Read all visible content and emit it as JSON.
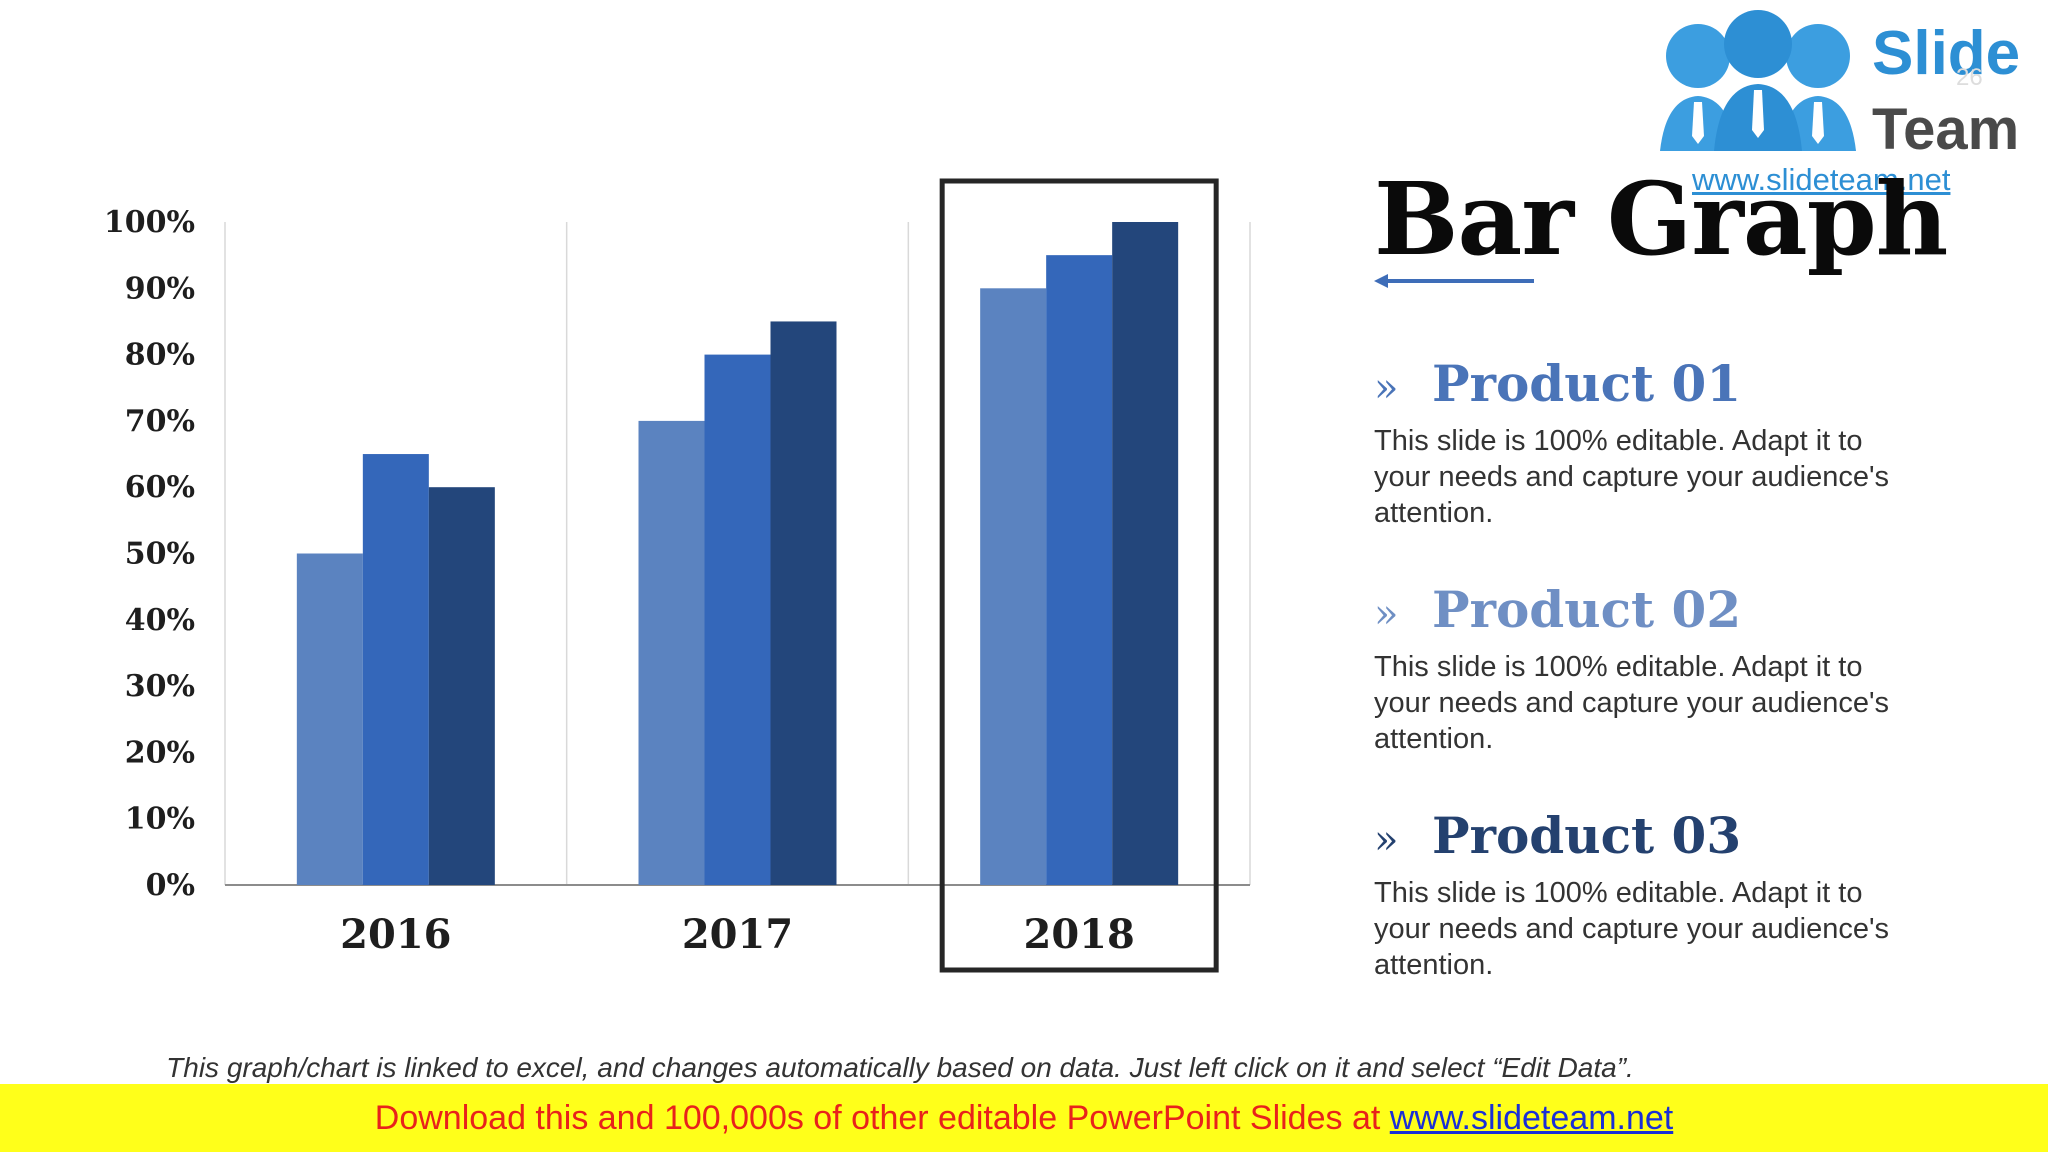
{
  "logo": {
    "word_1": "Slide",
    "word_2": "Team",
    "url": "www.slideteam.net"
  },
  "page_number": "26",
  "title": "Bar Graph",
  "products": [
    {
      "chevron": "»",
      "name": "Product 01",
      "color": "#4a74b8",
      "description": "This slide is 100% editable. Adapt it to your needs and capture your audience's attention."
    },
    {
      "chevron": "»",
      "name": "Product 02",
      "color": "#6f8fc4",
      "description": "This slide is 100% editable. Adapt it to your needs and capture your audience's attention."
    },
    {
      "chevron": "»",
      "name": "Product 03",
      "color": "#24416f",
      "description": "This slide is 100% editable. Adapt it to your needs and capture your audience's attention."
    }
  ],
  "footnote": "This graph/chart is linked to excel, and changes automatically based on data. Just left click on it and select “Edit Data”.",
  "banner": {
    "text": "Download this and 100,000s of other editable PowerPoint Slides at ",
    "link": "www.slideteam.net"
  },
  "colors": {
    "series_1": "#5b83c0",
    "series_2": "#3467ba",
    "series_3": "#23467b",
    "arrow": "#3e6db8"
  },
  "chart_data": {
    "type": "bar",
    "categories": [
      "2016",
      "2017",
      "2018"
    ],
    "series": [
      {
        "values": [
          50,
          70,
          90
        ]
      },
      {
        "values": [
          65,
          80,
          95
        ]
      },
      {
        "values": [
          60,
          85,
          100
        ]
      }
    ],
    "yticks": [
      "0%",
      "10%",
      "20%",
      "30%",
      "40%",
      "50%",
      "60%",
      "70%",
      "80%",
      "90%",
      "100%"
    ],
    "ylim": [
      0,
      100
    ],
    "grid": "vertical category separators",
    "highlighted_category": "2018",
    "legend": "none"
  }
}
